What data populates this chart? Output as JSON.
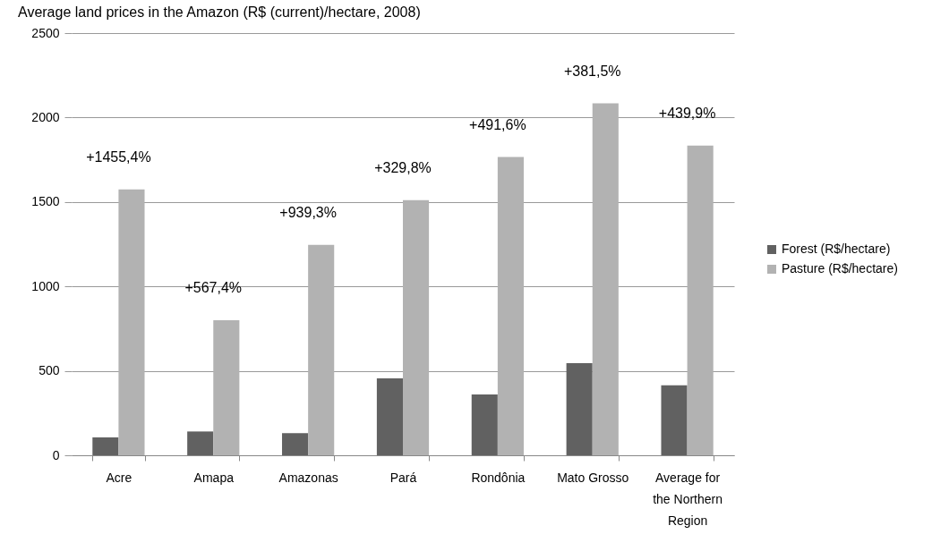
{
  "chart_data": {
    "type": "bar",
    "title": "Average land prices in the Amazon (R$ (current)/hectare, 2008)",
    "categories": [
      "Acre",
      "Amapa",
      "Amazonas",
      "Pará",
      "Rondônia",
      "Mato Grosso",
      "Average for the Northern Region"
    ],
    "series": [
      {
        "name": "Forest (R$/hectare)",
        "color": "#616161",
        "values": [
          106,
          141,
          131,
          456,
          360,
          545,
          415
        ]
      },
      {
        "name": "Pasture (R$/hectare)",
        "color": "#b2b2b2",
        "values": [
          1574,
          800,
          1246,
          1511,
          1766,
          2084,
          1834
        ]
      }
    ],
    "annotations": [
      {
        "text": "+1455,4%",
        "x": "Acre",
        "y": 1574
      },
      {
        "text": "+567,4%",
        "x": "Amapa",
        "y": 800
      },
      {
        "text": "+939,3%",
        "x": "Amazonas",
        "y": 1246
      },
      {
        "text": "+329,8%",
        "x": "Pará",
        "y": 1511
      },
      {
        "text": "+491,6%",
        "x": "Rondônia",
        "y": 1766
      },
      {
        "text": "+381,5%",
        "x": "Mato Grosso",
        "y": 2084
      },
      {
        "text": "+439,9%",
        "x": "Average for the Northern Region",
        "y": 1834
      }
    ],
    "ylim": [
      0,
      2500
    ],
    "yticks": [
      0,
      500,
      1000,
      1500,
      2000,
      2500
    ],
    "grid": "y",
    "legend": "right"
  }
}
